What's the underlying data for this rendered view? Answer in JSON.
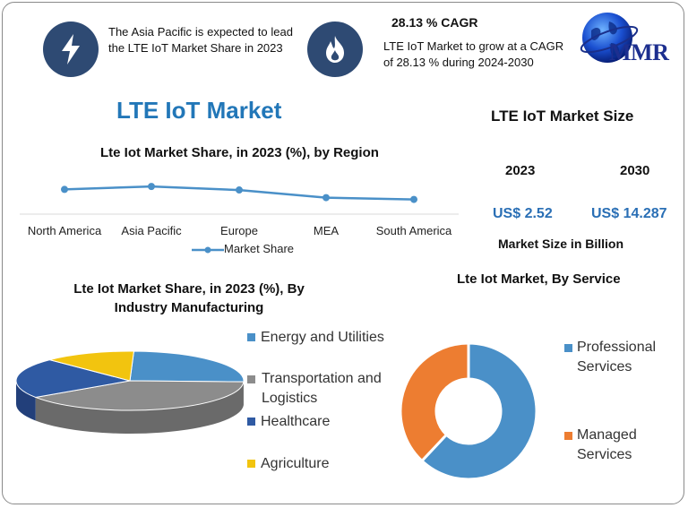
{
  "highlights": {
    "region_text": "The Asia Pacific is expected to lead the LTE IoT Market Share in 2023",
    "cagr_title": "28.13 % CAGR",
    "cagr_text": "LTE IoT Market to grow at a CAGR of 28.13 % during 2024-2030"
  },
  "logo": {
    "text": "MMR"
  },
  "main_title": "LTE IoT Market",
  "market_size": {
    "title": "LTE IoT Market Size",
    "year_a": "2023",
    "year_b": "2030",
    "value_a": "US$ 2.52",
    "value_b": "US$ 14.287",
    "subtitle": "Market Size in Billion"
  },
  "colors": {
    "blue": "#4a90c8",
    "gray": "#8c8c8c",
    "navy": "#2f5aa3",
    "yellow": "#f2c40f",
    "orange": "#ed7d31",
    "title_blue": "#2277b8",
    "icon_bg": "#2e4a73"
  },
  "chart_data": [
    {
      "type": "line",
      "title": "Lte Iot Market Share, in 2023 (%), by Region",
      "categories": [
        "North America",
        "Asia Pacific",
        "Europe",
        "MEA",
        "South America"
      ],
      "series": [
        {
          "name": "Market Share",
          "values": [
            27,
            32,
            26,
            13,
            10
          ]
        }
      ],
      "ylim": [
        -15,
        55
      ],
      "grid": false,
      "legend": "bottom"
    },
    {
      "type": "pie",
      "title": "Lte Iot Market Share, in 2023 (%), By Industry Manufacturing",
      "categories": [
        "Energy and Utilities",
        "Transportation and Logistics",
        "Healthcare",
        "Agriculture"
      ],
      "values": [
        25,
        40,
        22,
        13
      ],
      "legend": "right"
    },
    {
      "type": "pie",
      "title": "Lte Iot Market, By Service",
      "categories": [
        "Professional Services",
        "Managed Services"
      ],
      "values": [
        62,
        38
      ],
      "legend": "right"
    }
  ]
}
